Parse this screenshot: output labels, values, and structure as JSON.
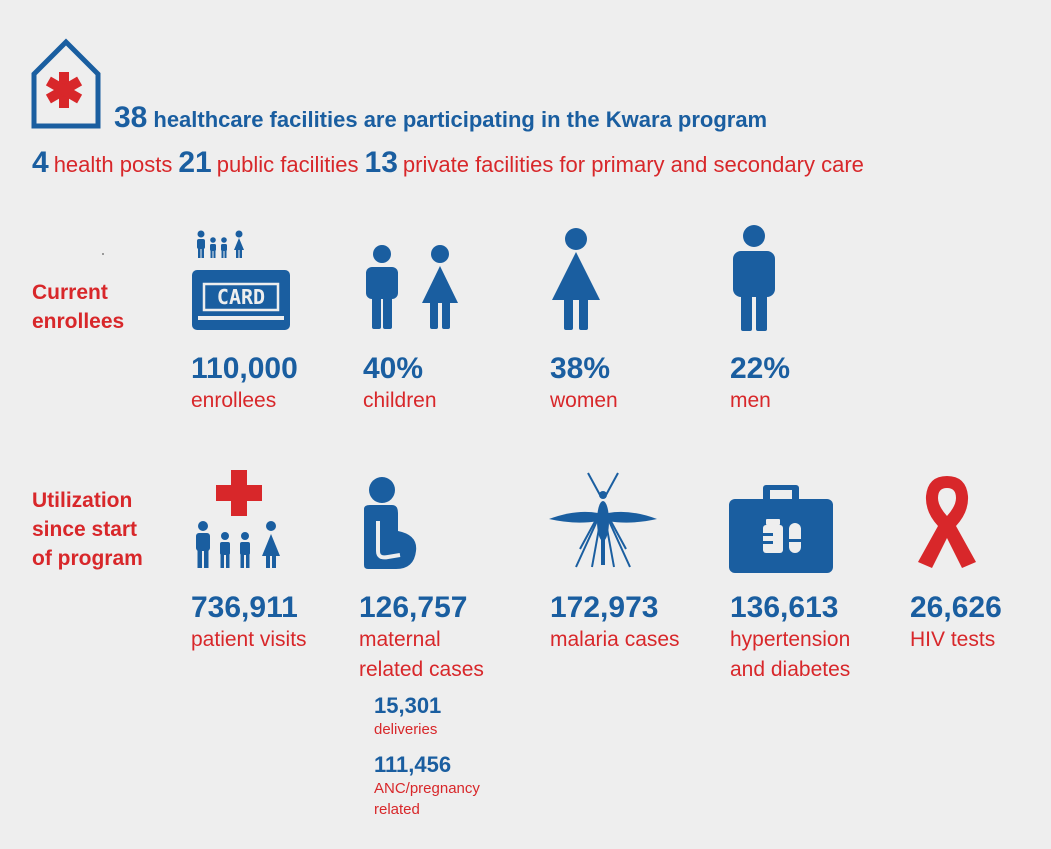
{
  "header": {
    "facilities_count": "38",
    "facilities_text": "healthcare facilities are participating in the Kwara program",
    "health_posts_count": "4",
    "health_posts_text": "health posts",
    "public_count": "21",
    "public_text": "public facilities",
    "private_count": "13",
    "private_text": "private facilities for primary and secondary care"
  },
  "enrollees": {
    "section_label": "Current\nenrollees",
    "items": [
      {
        "value": "110,000",
        "label": "enrollees",
        "icon": "insurance-card-icon"
      },
      {
        "value": "40%",
        "label": "children",
        "icon": "children-icon"
      },
      {
        "value": "38%",
        "label": "women",
        "icon": "woman-icon"
      },
      {
        "value": "22%",
        "label": "men",
        "icon": "man-icon"
      }
    ]
  },
  "utilization": {
    "section_label": "Utilization\nsince start\nof program",
    "items": [
      {
        "value": "736,911",
        "label": "patient visits",
        "icon": "medical-cross-family-icon"
      },
      {
        "value": "126,757",
        "label": "maternal\nrelated cases",
        "icon": "pregnant-woman-icon"
      },
      {
        "value": "172,973",
        "label": "malaria cases",
        "icon": "mosquito-icon"
      },
      {
        "value": "136,613",
        "label": "hypertension\nand diabetes",
        "icon": "medical-kit-icon"
      },
      {
        "value": "26,626",
        "label": "HIV tests",
        "icon": "awareness-ribbon-icon"
      }
    ],
    "maternal_breakdown": [
      {
        "value": "15,301",
        "label": "deliveries"
      },
      {
        "value": "111,456",
        "label": "ANC/pregnancy\nrelated"
      }
    ]
  },
  "card_text": "CARD",
  "colors": {
    "blue": "#1a5ea0",
    "red": "#d8272a",
    "background": "#eeeeee"
  }
}
